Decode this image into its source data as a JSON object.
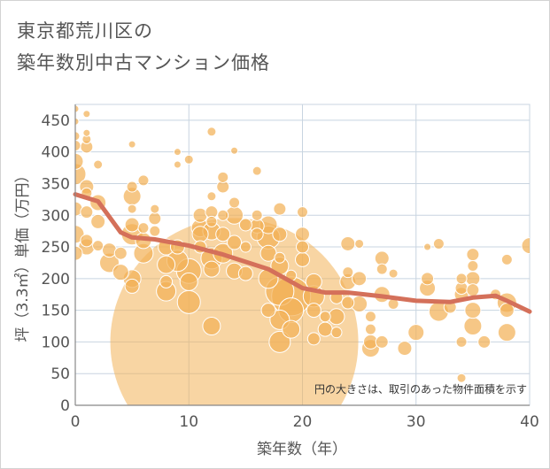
{
  "chart_data": {
    "type": "scatter",
    "title_line1": "東京都荒川区の",
    "title_line2": "築年数別中古マンション価格",
    "xlabel": "築年数（年）",
    "ylabel": "坪（3.3㎡）単価（万円）",
    "xlim": [
      0,
      40
    ],
    "ylim": [
      0,
      475
    ],
    "xticks": [
      0,
      10,
      20,
      30,
      40
    ],
    "yticks": [
      0,
      50,
      100,
      150,
      200,
      250,
      300,
      350,
      400,
      450
    ],
    "grid": true,
    "annotation": "円の大きさは、取引のあった物件面積を示す",
    "colors": {
      "bubble": "#f2b257",
      "bubble_stroke": "#ffffff",
      "trend": "#d4705a",
      "grid": "#c8d4e0",
      "axis": "#888888"
    },
    "trend_line": {
      "x": [
        0,
        2,
        4,
        5,
        7,
        10,
        13,
        17,
        20,
        22,
        24,
        27,
        30,
        33,
        35,
        37,
        38,
        40
      ],
      "y": [
        333,
        322,
        273,
        265,
        262,
        252,
        238,
        215,
        185,
        178,
        178,
        172,
        165,
        163,
        170,
        173,
        165,
        148
      ]
    },
    "points": [
      {
        "x": 0,
        "y": 468,
        "s": 4
      },
      {
        "x": 0,
        "y": 448,
        "s": 4
      },
      {
        "x": 1,
        "y": 460,
        "s": 4
      },
      {
        "x": 0,
        "y": 425,
        "s": 5
      },
      {
        "x": 0,
        "y": 410,
        "s": 6
      },
      {
        "x": 1,
        "y": 430,
        "s": 4
      },
      {
        "x": 1,
        "y": 420,
        "s": 5
      },
      {
        "x": 1,
        "y": 408,
        "s": 7
      },
      {
        "x": 0,
        "y": 385,
        "s": 9
      },
      {
        "x": 2,
        "y": 380,
        "s": 5
      },
      {
        "x": 0,
        "y": 365,
        "s": 12
      },
      {
        "x": 1,
        "y": 345,
        "s": 8
      },
      {
        "x": 1,
        "y": 335,
        "s": 6
      },
      {
        "x": 2,
        "y": 320,
        "s": 9
      },
      {
        "x": 0,
        "y": 310,
        "s": 8
      },
      {
        "x": 1,
        "y": 305,
        "s": 7
      },
      {
        "x": 2,
        "y": 290,
        "s": 8
      },
      {
        "x": 0,
        "y": 270,
        "s": 10
      },
      {
        "x": 1,
        "y": 260,
        "s": 7
      },
      {
        "x": 1,
        "y": 250,
        "s": 9
      },
      {
        "x": 0,
        "y": 240,
        "s": 8
      },
      {
        "x": 2,
        "y": 252,
        "s": 6
      },
      {
        "x": 3,
        "y": 245,
        "s": 8
      },
      {
        "x": 3,
        "y": 225,
        "s": 11
      },
      {
        "x": 4,
        "y": 240,
        "s": 7
      },
      {
        "x": 4,
        "y": 210,
        "s": 9
      },
      {
        "x": 5,
        "y": 412,
        "s": 4
      },
      {
        "x": 5,
        "y": 345,
        "s": 6
      },
      {
        "x": 5,
        "y": 330,
        "s": 10
      },
      {
        "x": 5,
        "y": 310,
        "s": 5
      },
      {
        "x": 5,
        "y": 285,
        "s": 8
      },
      {
        "x": 5,
        "y": 270,
        "s": 12
      },
      {
        "x": 6,
        "y": 280,
        "s": 6
      },
      {
        "x": 6,
        "y": 260,
        "s": 9
      },
      {
        "x": 6,
        "y": 240,
        "s": 11
      },
      {
        "x": 5,
        "y": 200,
        "s": 10
      },
      {
        "x": 5,
        "y": 188,
        "s": 8
      },
      {
        "x": 6,
        "y": 355,
        "s": 6
      },
      {
        "x": 7,
        "y": 310,
        "s": 5
      },
      {
        "x": 7,
        "y": 295,
        "s": 7
      },
      {
        "x": 7,
        "y": 275,
        "s": 6
      },
      {
        "x": 8,
        "y": 250,
        "s": 9
      },
      {
        "x": 8,
        "y": 222,
        "s": 10
      },
      {
        "x": 8,
        "y": 195,
        "s": 7
      },
      {
        "x": 8,
        "y": 180,
        "s": 11
      },
      {
        "x": 9,
        "y": 400,
        "s": 4
      },
      {
        "x": 9,
        "y": 380,
        "s": 4
      },
      {
        "x": 9,
        "y": 250,
        "s": 8
      },
      {
        "x": 9,
        "y": 228,
        "s": 12
      },
      {
        "x": 10,
        "y": 212,
        "s": 14
      },
      {
        "x": 10,
        "y": 195,
        "s": 10
      },
      {
        "x": 10,
        "y": 163,
        "s": 13
      },
      {
        "x": 10,
        "y": 388,
        "s": 5
      },
      {
        "x": 11,
        "y": 300,
        "s": 8
      },
      {
        "x": 11,
        "y": 280,
        "s": 10
      },
      {
        "x": 11,
        "y": 270,
        "s": 9
      },
      {
        "x": 11,
        "y": 250,
        "s": 7
      },
      {
        "x": 12,
        "y": 432,
        "s": 5
      },
      {
        "x": 12,
        "y": 330,
        "s": 5
      },
      {
        "x": 12,
        "y": 305,
        "s": 7
      },
      {
        "x": 12,
        "y": 290,
        "s": 6
      },
      {
        "x": 12,
        "y": 275,
        "s": 10
      },
      {
        "x": 12,
        "y": 232,
        "s": 12
      },
      {
        "x": 12,
        "y": 215,
        "s": 9
      },
      {
        "x": 12,
        "y": 125,
        "s": 10
      },
      {
        "x": 13,
        "y": 360,
        "s": 6
      },
      {
        "x": 13,
        "y": 345,
        "s": 7
      },
      {
        "x": 13,
        "y": 300,
        "s": 6
      },
      {
        "x": 13,
        "y": 270,
        "s": 8
      },
      {
        "x": 13,
        "y": 240,
        "s": 11
      },
      {
        "x": 14,
        "y": 402,
        "s": 4
      },
      {
        "x": 14,
        "y": 320,
        "s": 6
      },
      {
        "x": 14,
        "y": 300,
        "s": 10
      },
      {
        "x": 14,
        "y": 257,
        "s": 8
      },
      {
        "x": 14,
        "y": 212,
        "s": 9
      },
      {
        "x": 15,
        "y": 285,
        "s": 7
      },
      {
        "x": 15,
        "y": 250,
        "s": 6
      },
      {
        "x": 15,
        "y": 208,
        "s": 8
      },
      {
        "x": 16,
        "y": 370,
        "s": 5
      },
      {
        "x": 16,
        "y": 300,
        "s": 6
      },
      {
        "x": 16,
        "y": 283,
        "s": 8
      },
      {
        "x": 16,
        "y": 270,
        "s": 7
      },
      {
        "x": 17,
        "y": 285,
        "s": 10
      },
      {
        "x": 17,
        "y": 265,
        "s": 13
      },
      {
        "x": 17,
        "y": 240,
        "s": 9
      },
      {
        "x": 17,
        "y": 200,
        "s": 11
      },
      {
        "x": 17,
        "y": 150,
        "s": 8
      },
      {
        "x": 18,
        "y": 310,
        "s": 7
      },
      {
        "x": 18,
        "y": 270,
        "s": 8
      },
      {
        "x": 18,
        "y": 233,
        "s": 6
      },
      {
        "x": 18,
        "y": 220,
        "s": 10
      },
      {
        "x": 18,
        "y": 180,
        "s": 16
      },
      {
        "x": 18,
        "y": 135,
        "s": 11
      },
      {
        "x": 18,
        "y": 100,
        "s": 12
      },
      {
        "x": 19,
        "y": 205,
        "s": 6
      },
      {
        "x": 19,
        "y": 172,
        "s": 22
      },
      {
        "x": 19,
        "y": 150,
        "s": 14
      },
      {
        "x": 19,
        "y": 120,
        "s": 10
      },
      {
        "x": 20,
        "y": 305,
        "s": 6
      },
      {
        "x": 20,
        "y": 270,
        "s": 8
      },
      {
        "x": 20,
        "y": 250,
        "s": 7
      },
      {
        "x": 20,
        "y": 230,
        "s": 8
      },
      {
        "x": 21,
        "y": 195,
        "s": 9
      },
      {
        "x": 21,
        "y": 172,
        "s": 12
      },
      {
        "x": 21,
        "y": 150,
        "s": 8
      },
      {
        "x": 21,
        "y": 105,
        "s": 7
      },
      {
        "x": 22,
        "y": 140,
        "s": 6
      },
      {
        "x": 22,
        "y": 120,
        "s": 8
      },
      {
        "x": 23,
        "y": 170,
        "s": 7
      },
      {
        "x": 23,
        "y": 140,
        "s": 9
      },
      {
        "x": 23,
        "y": 115,
        "s": 6
      },
      {
        "x": 24,
        "y": 255,
        "s": 8
      },
      {
        "x": 24,
        "y": 210,
        "s": 6
      },
      {
        "x": 24,
        "y": 162,
        "s": 7
      },
      {
        "x": 24,
        "y": 195,
        "s": 9
      },
      {
        "x": 25,
        "y": 255,
        "s": 5
      },
      {
        "x": 25,
        "y": 200,
        "s": 8
      },
      {
        "x": 25,
        "y": 160,
        "s": 9
      },
      {
        "x": 26,
        "y": 140,
        "s": 6
      },
      {
        "x": 26,
        "y": 120,
        "s": 6
      },
      {
        "x": 26,
        "y": 100,
        "s": 8
      },
      {
        "x": 26,
        "y": 90,
        "s": 10
      },
      {
        "x": 27,
        "y": 232,
        "s": 8
      },
      {
        "x": 27,
        "y": 215,
        "s": 6
      },
      {
        "x": 27,
        "y": 175,
        "s": 9
      },
      {
        "x": 27,
        "y": 100,
        "s": 7
      },
      {
        "x": 28,
        "y": 208,
        "s": 5
      },
      {
        "x": 28,
        "y": 160,
        "s": 6
      },
      {
        "x": 29,
        "y": 90,
        "s": 8
      },
      {
        "x": 30,
        "y": 115,
        "s": 9
      },
      {
        "x": 31,
        "y": 250,
        "s": 4
      },
      {
        "x": 31,
        "y": 200,
        "s": 7
      },
      {
        "x": 31,
        "y": 185,
        "s": 9
      },
      {
        "x": 32,
        "y": 255,
        "s": 6
      },
      {
        "x": 32,
        "y": 148,
        "s": 11
      },
      {
        "x": 33,
        "y": 155,
        "s": 7
      },
      {
        "x": 34,
        "y": 200,
        "s": 6
      },
      {
        "x": 34,
        "y": 185,
        "s": 7
      },
      {
        "x": 34,
        "y": 175,
        "s": 8
      },
      {
        "x": 34,
        "y": 100,
        "s": 6
      },
      {
        "x": 34,
        "y": 43,
        "s": 5
      },
      {
        "x": 35,
        "y": 238,
        "s": 7
      },
      {
        "x": 35,
        "y": 220,
        "s": 6
      },
      {
        "x": 35,
        "y": 200,
        "s": 8
      },
      {
        "x": 35,
        "y": 182,
        "s": 7
      },
      {
        "x": 35,
        "y": 150,
        "s": 9
      },
      {
        "x": 35,
        "y": 125,
        "s": 10
      },
      {
        "x": 36,
        "y": 100,
        "s": 7
      },
      {
        "x": 37,
        "y": 175,
        "s": 6
      },
      {
        "x": 38,
        "y": 230,
        "s": 6
      },
      {
        "x": 38,
        "y": 162,
        "s": 11
      },
      {
        "x": 38,
        "y": 150,
        "s": 8
      },
      {
        "x": 38,
        "y": 115,
        "s": 10
      },
      {
        "x": 40,
        "y": 252,
        "s": 9
      },
      {
        "x": 14,
        "y": 100,
        "s": 140
      }
    ]
  }
}
